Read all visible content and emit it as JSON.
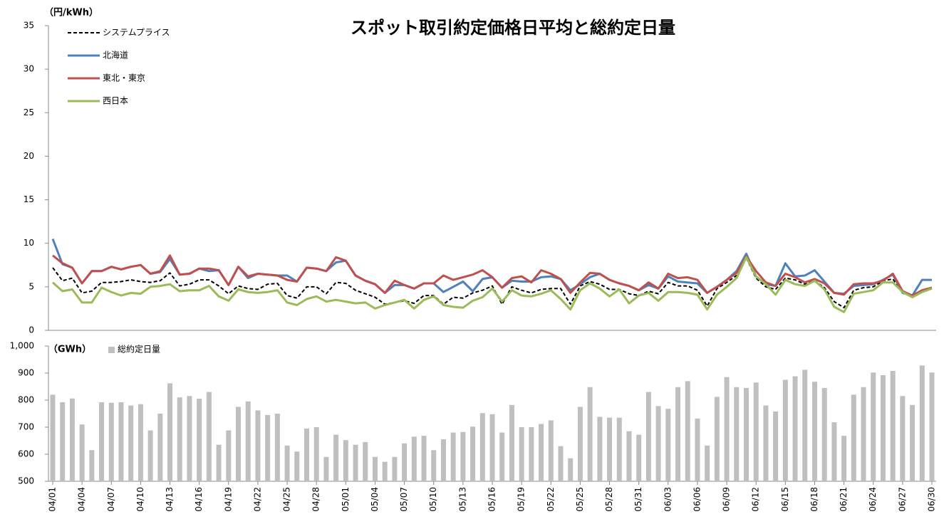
{
  "chart_data": [
    {
      "type": "line",
      "title": "スポット取引約定価格日平均と総約定日量",
      "y_label": "（円/kWh）",
      "ylim": [
        0,
        35
      ],
      "yticks": [
        0,
        5,
        10,
        15,
        20,
        25,
        30,
        35
      ],
      "legend": "top-left",
      "series": [
        {
          "name": "システムプライス",
          "color": "#000000",
          "style": "dashed",
          "values": [
            7.2,
            5.7,
            6.0,
            4.3,
            4.5,
            5.5,
            5.5,
            5.6,
            5.8,
            5.6,
            5.5,
            5.7,
            6.6,
            5.1,
            5.3,
            5.8,
            5.8,
            5.1,
            4.2,
            5.1,
            4.8,
            4.7,
            5.3,
            5.4,
            4.0,
            3.7,
            5.0,
            5.0,
            4.2,
            5.5,
            5.4,
            4.6,
            4.2,
            3.8,
            3.0,
            3.2,
            3.4,
            3.1,
            4.0,
            4.0,
            3.0,
            3.8,
            3.7,
            4.3,
            4.6,
            5.1,
            3.0,
            5.0,
            4.6,
            4.3,
            4.7,
            4.8,
            4.8,
            3.0,
            5.1,
            5.6,
            5.3,
            4.7,
            4.7,
            4.2,
            4.0,
            4.5,
            4.2,
            5.5,
            5.1,
            5.1,
            4.6,
            2.8,
            4.8,
            5.5,
            6.3,
            8.3,
            6.0,
            5.0,
            4.7,
            6.0,
            5.8,
            5.3,
            5.7,
            4.9,
            3.3,
            2.6,
            4.6,
            4.9,
            5.0,
            5.7,
            5.9,
            4.3,
            3.9,
            4.6,
            4.8
          ]
        },
        {
          "name": "北海道",
          "color": "#4f81bd",
          "style": "solid",
          "values": [
            10.5,
            7.6,
            7.2,
            5.4,
            6.8,
            6.8,
            7.3,
            7.0,
            7.3,
            7.5,
            6.5,
            6.7,
            8.2,
            6.4,
            6.5,
            7.1,
            6.8,
            6.9,
            5.2,
            7.3,
            6.0,
            6.5,
            6.4,
            6.3,
            6.3,
            5.6,
            7.2,
            7.1,
            6.8,
            7.8,
            8.0,
            6.3,
            5.7,
            5.3,
            4.3,
            5.2,
            5.2,
            4.8,
            5.4,
            5.4,
            4.4,
            5.0,
            5.6,
            4.5,
            5.9,
            6.1,
            4.9,
            5.7,
            5.6,
            5.6,
            6.1,
            6.2,
            5.9,
            4.6,
            5.3,
            6.1,
            6.5,
            5.8,
            5.4,
            5.1,
            4.6,
            5.2,
            4.8,
            6.2,
            5.6,
            5.5,
            5.4,
            4.3,
            5.0,
            5.8,
            6.8,
            8.8,
            6.2,
            5.3,
            5.1,
            7.7,
            6.2,
            6.3,
            6.9,
            5.6,
            4.3,
            4.2,
            5.1,
            5.2,
            5.3,
            5.8,
            6.4,
            4.3,
            4.0,
            5.8,
            5.8
          ]
        },
        {
          "name": "東北・東京",
          "color": "#c0504d",
          "style": "solid",
          "values": [
            8.6,
            7.7,
            7.2,
            5.4,
            6.8,
            6.8,
            7.3,
            7.0,
            7.3,
            7.5,
            6.5,
            6.8,
            8.6,
            6.4,
            6.5,
            7.1,
            7.1,
            6.9,
            5.2,
            7.3,
            6.2,
            6.5,
            6.4,
            6.3,
            5.8,
            5.6,
            7.2,
            7.1,
            6.8,
            8.4,
            8.0,
            6.3,
            5.7,
            5.3,
            4.3,
            5.7,
            5.2,
            4.8,
            5.4,
            5.4,
            6.3,
            5.8,
            6.1,
            6.4,
            6.9,
            6.1,
            4.9,
            6.0,
            6.2,
            5.5,
            6.9,
            6.5,
            5.9,
            4.3,
            5.5,
            6.6,
            6.5,
            5.8,
            5.4,
            5.1,
            4.6,
            5.5,
            4.8,
            6.5,
            6.0,
            6.1,
            5.8,
            4.3,
            5.0,
            5.8,
            6.6,
            8.5,
            6.8,
            5.5,
            5.1,
            6.5,
            6.1,
            5.5,
            5.9,
            5.4,
            4.3,
            4.1,
            5.3,
            5.4,
            5.4,
            5.7,
            6.5,
            4.5,
            4.0,
            4.6,
            4.9
          ]
        },
        {
          "name": "西日本",
          "color": "#9bbb59",
          "style": "solid",
          "values": [
            5.5,
            4.5,
            4.7,
            3.2,
            3.2,
            4.9,
            4.4,
            4.0,
            4.3,
            4.2,
            5.0,
            5.1,
            5.3,
            4.5,
            4.6,
            4.6,
            5.1,
            3.9,
            3.4,
            4.7,
            4.4,
            4.3,
            4.4,
            4.6,
            3.2,
            2.9,
            3.6,
            3.9,
            3.3,
            3.5,
            3.3,
            3.1,
            3.2,
            2.5,
            2.9,
            3.2,
            3.5,
            2.5,
            3.5,
            3.9,
            2.9,
            2.7,
            2.6,
            3.4,
            3.8,
            4.8,
            3.3,
            4.6,
            4.0,
            3.9,
            4.2,
            4.6,
            3.6,
            2.4,
            4.6,
            5.4,
            4.8,
            3.9,
            4.7,
            3.1,
            4.0,
            4.3,
            3.4,
            4.4,
            4.4,
            4.3,
            4.1,
            2.4,
            4.1,
            5.0,
            6.0,
            8.4,
            6.2,
            5.3,
            4.1,
            5.8,
            5.3,
            5.1,
            5.7,
            4.7,
            2.7,
            2.1,
            4.2,
            4.4,
            4.6,
            5.5,
            5.5,
            4.4,
            3.8,
            4.4,
            4.8
          ]
        }
      ]
    },
    {
      "type": "bar",
      "y_label": "（GWh）",
      "ylim": [
        500,
        1000
      ],
      "yticks": [
        500,
        600,
        700,
        800,
        900,
        {
          "value": 1000,
          "label": "1,000"
        }
      ],
      "legend": "top-left",
      "categories": [
        "04/01",
        null,
        null,
        "04/04",
        null,
        null,
        "04/07",
        null,
        null,
        "04/10",
        null,
        null,
        "04/13",
        null,
        null,
        "04/16",
        null,
        null,
        "04/19",
        null,
        null,
        "04/22",
        null,
        null,
        "04/25",
        null,
        null,
        "04/28",
        null,
        null,
        "05/01",
        null,
        null,
        "05/04",
        null,
        null,
        "05/07",
        null,
        null,
        "05/10",
        null,
        null,
        "05/13",
        null,
        null,
        "05/16",
        null,
        null,
        "05/19",
        null,
        null,
        "05/22",
        null,
        null,
        "05/25",
        null,
        null,
        "05/28",
        null,
        null,
        "05/31",
        null,
        null,
        "06/03",
        null,
        null,
        "06/06",
        null,
        null,
        "06/09",
        null,
        null,
        "06/12",
        null,
        null,
        "06/15",
        null,
        null,
        "06/18",
        null,
        null,
        "06/21",
        null,
        null,
        "06/24",
        null,
        null,
        "06/27",
        null,
        null,
        "06/30"
      ],
      "series": [
        {
          "name": "総約定日量",
          "color": "#bfbfbf",
          "values": [
            820,
            792,
            806,
            710,
            615,
            792,
            790,
            792,
            780,
            785,
            688,
            750,
            862,
            810,
            815,
            805,
            830,
            635,
            688,
            775,
            795,
            762,
            745,
            750,
            632,
            610,
            695,
            700,
            590,
            672,
            652,
            635,
            645,
            590,
            572,
            590,
            640,
            665,
            668,
            615,
            655,
            680,
            682,
            702,
            752,
            748,
            680,
            782,
            700,
            700,
            712,
            725,
            630,
            585,
            775,
            848,
            738,
            735,
            735,
            685,
            672,
            830,
            778,
            768,
            848,
            870,
            732,
            632,
            812,
            885,
            848,
            845,
            865,
            780,
            758,
            875,
            888,
            912,
            868,
            845,
            718,
            668,
            820,
            848,
            902,
            892,
            908,
            815,
            782,
            928,
            902
          ]
        }
      ]
    }
  ]
}
